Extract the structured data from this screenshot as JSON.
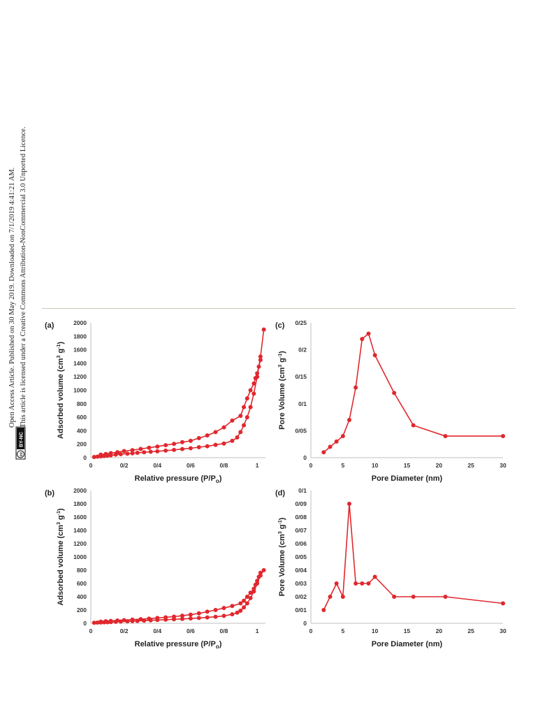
{
  "side_notice": {
    "line1": "Open Access Article. Published on 30 May 2019. Downloaded on 7/1/2019 4:41:21 AM.",
    "line2": "This article is licensed under a Creative Commons Attribution-NonCommercial 3.0 Unported Licence.",
    "badge_cc": "cc",
    "badge_text": "BY-NC"
  },
  "colors": {
    "series": "#e0282e",
    "axis": "#bfbfbf"
  },
  "chart_data": [
    {
      "id": "a",
      "type": "line",
      "panel_label": "(a)",
      "xlabel": "Relative pressure (P/P",
      "xlabel_sub": "o",
      "ylabel": "Adsorbed volume (cm",
      "ylabel_sup": "3",
      "ylabel_mid": " g",
      "ylabel_sup2": "-1",
      "ylabel_end": ")",
      "xlim": [
        0,
        1.05
      ],
      "ylim": [
        0,
        2000
      ],
      "xticks": [
        0,
        0.2,
        0.4,
        0.6,
        0.8,
        1
      ],
      "xtick_labels": [
        "0",
        "0/2",
        "0/4",
        "0/6",
        "0/8",
        "1"
      ],
      "yticks": [
        0,
        200,
        400,
        600,
        800,
        1000,
        1200,
        1400,
        1600,
        1800,
        2000
      ],
      "ytick_labels": [
        "0",
        "200",
        "400",
        "600",
        "800",
        "1000",
        "1200",
        "1400",
        "1600",
        "1800",
        "2000"
      ],
      "grid": false,
      "series": [
        {
          "x": [
            0.02,
            0.04,
            0.06,
            0.08,
            0.1,
            0.12,
            0.15,
            0.18,
            0.22,
            0.25,
            0.28,
            0.32,
            0.36,
            0.4,
            0.45,
            0.5,
            0.55,
            0.6,
            0.65,
            0.7,
            0.75,
            0.8,
            0.85,
            0.88,
            0.9,
            0.92,
            0.94,
            0.96,
            0.98,
            1.0,
            1.02,
            1.04
          ],
          "y": [
            10,
            15,
            20,
            25,
            30,
            35,
            45,
            52,
            60,
            65,
            72,
            80,
            88,
            95,
            105,
            115,
            128,
            140,
            155,
            170,
            190,
            210,
            250,
            300,
            380,
            480,
            600,
            750,
            950,
            1200,
            1500,
            1900
          ]
        },
        {
          "x": [
            1.02,
            1.01,
            1.0,
            0.99,
            0.98,
            0.96,
            0.94,
            0.92,
            0.9,
            0.85,
            0.8,
            0.75,
            0.7,
            0.65,
            0.6,
            0.55,
            0.5,
            0.45,
            0.4,
            0.35,
            0.3,
            0.25,
            0.2,
            0.16,
            0.12,
            0.09,
            0.06
          ],
          "y": [
            1450,
            1350,
            1250,
            1180,
            1100,
            1000,
            880,
            750,
            620,
            550,
            450,
            380,
            330,
            290,
            250,
            230,
            205,
            185,
            165,
            148,
            130,
            112,
            98,
            82,
            68,
            55,
            45
          ]
        }
      ]
    },
    {
      "id": "b",
      "type": "line",
      "panel_label": "(b)",
      "xlabel": "Relative pressure (P/P",
      "xlabel_sub": "o",
      "ylabel": "Adsorbed volume (cm",
      "ylabel_sup": "3",
      "ylabel_mid": " g",
      "ylabel_sup2": "-1",
      "ylabel_end": ")",
      "xlim": [
        0,
        1.05
      ],
      "ylim": [
        0,
        2000
      ],
      "xticks": [
        0,
        0.2,
        0.4,
        0.6,
        0.8,
        1
      ],
      "xtick_labels": [
        "0",
        "0/2",
        "0/4",
        "0/6",
        "0/8",
        "1"
      ],
      "yticks": [
        0,
        200,
        400,
        600,
        800,
        1000,
        1200,
        1400,
        1600,
        1800,
        2000
      ],
      "ytick_labels": [
        "0",
        "200",
        "400",
        "600",
        "800",
        "1000",
        "1200",
        "1400",
        "1600",
        "1800",
        "2000"
      ],
      "grid": false,
      "series": [
        {
          "x": [
            0.02,
            0.04,
            0.06,
            0.08,
            0.1,
            0.12,
            0.15,
            0.18,
            0.22,
            0.25,
            0.28,
            0.32,
            0.36,
            0.4,
            0.45,
            0.5,
            0.55,
            0.6,
            0.65,
            0.7,
            0.75,
            0.8,
            0.85,
            0.88,
            0.9,
            0.92,
            0.94,
            0.96,
            0.98,
            1.0,
            1.02,
            1.04
          ],
          "y": [
            8,
            10,
            12,
            14,
            16,
            18,
            22,
            26,
            30,
            33,
            36,
            40,
            45,
            50,
            55,
            60,
            66,
            72,
            80,
            88,
            98,
            112,
            135,
            160,
            190,
            240,
            300,
            380,
            480,
            600,
            720,
            800
          ]
        },
        {
          "x": [
            1.02,
            1.01,
            1.0,
            0.99,
            0.98,
            0.96,
            0.94,
            0.92,
            0.9,
            0.85,
            0.8,
            0.75,
            0.7,
            0.65,
            0.6,
            0.55,
            0.5,
            0.45,
            0.4,
            0.35,
            0.3,
            0.25,
            0.2,
            0.16,
            0.12,
            0.09,
            0.06
          ],
          "y": [
            760,
            700,
            640,
            580,
            520,
            460,
            400,
            340,
            300,
            260,
            230,
            200,
            175,
            150,
            130,
            115,
            100,
            90,
            80,
            70,
            62,
            55,
            48,
            42,
            36,
            30,
            25
          ]
        }
      ]
    },
    {
      "id": "c",
      "type": "line",
      "panel_label": "(c)",
      "xlabel": "Pore Diameter (nm)",
      "ylabel": "Pore Volume (cm",
      "ylabel_sup": "3",
      "ylabel_mid": " g",
      "ylabel_sup2": "-1",
      "ylabel_end": ")",
      "xlim": [
        0,
        30
      ],
      "ylim": [
        0,
        0.25
      ],
      "xticks": [
        0,
        5,
        10,
        15,
        20,
        25,
        30
      ],
      "xtick_labels": [
        "0",
        "5",
        "10",
        "15",
        "20",
        "25",
        "30"
      ],
      "yticks": [
        0,
        0.05,
        0.1,
        0.15,
        0.2,
        0.25
      ],
      "ytick_labels": [
        "0",
        "0/05",
        "0/1",
        "0/15",
        "0/2",
        "0/25"
      ],
      "grid": false,
      "series": [
        {
          "x": [
            2,
            3,
            4,
            5,
            6,
            7,
            8,
            9,
            10,
            13,
            16,
            21,
            30
          ],
          "y": [
            0.01,
            0.02,
            0.03,
            0.04,
            0.07,
            0.13,
            0.22,
            0.23,
            0.19,
            0.12,
            0.06,
            0.04,
            0.04
          ]
        }
      ]
    },
    {
      "id": "d",
      "type": "line",
      "panel_label": "(d)",
      "xlabel": "Pore Diameter (nm)",
      "ylabel": "Pore Volume (cm",
      "ylabel_sup": "3",
      "ylabel_mid": " g",
      "ylabel_sup2": "-1",
      "ylabel_end": ")",
      "xlim": [
        0,
        30
      ],
      "ylim": [
        0,
        0.1
      ],
      "xticks": [
        0,
        5,
        10,
        15,
        20,
        25,
        30
      ],
      "xtick_labels": [
        "0",
        "5",
        "10",
        "15",
        "20",
        "25",
        "30"
      ],
      "yticks": [
        0,
        0.01,
        0.02,
        0.03,
        0.04,
        0.05,
        0.06,
        0.07,
        0.08,
        0.09,
        0.1
      ],
      "ytick_labels": [
        "0",
        "0/01",
        "0/02",
        "0/03",
        "0/04",
        "0/05",
        "0/06",
        "0/07",
        "0/08",
        "0/09",
        "0/1"
      ],
      "grid": false,
      "series": [
        {
          "x": [
            2,
            3,
            4,
            5,
            6,
            7,
            8,
            9,
            10,
            13,
            16,
            21,
            30
          ],
          "y": [
            0.01,
            0.02,
            0.03,
            0.02,
            0.09,
            0.03,
            0.03,
            0.03,
            0.035,
            0.02,
            0.02,
            0.02,
            0.015
          ]
        }
      ]
    }
  ]
}
